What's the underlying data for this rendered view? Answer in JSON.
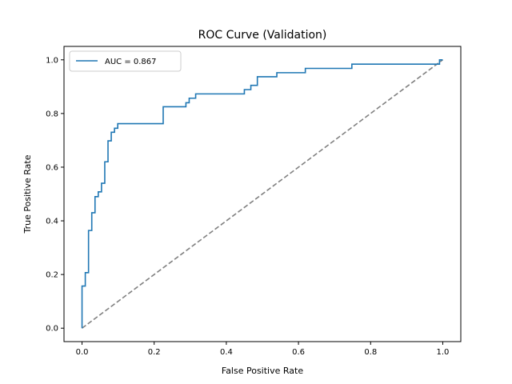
{
  "chart_data": {
    "type": "line",
    "title": "ROC Curve (Validation)",
    "xlabel": "False Positive Rate",
    "ylabel": "True Positive Rate",
    "xlim": [
      -0.05,
      1.05
    ],
    "ylim": [
      -0.05,
      1.05
    ],
    "xticks": [
      0.0,
      0.2,
      0.4,
      0.6,
      0.8,
      1.0
    ],
    "yticks": [
      0.0,
      0.2,
      0.4,
      0.6,
      0.8,
      1.0
    ],
    "xtick_labels": [
      "0.0",
      "0.2",
      "0.4",
      "0.6",
      "0.8",
      "1.0"
    ],
    "ytick_labels": [
      "0.0",
      "0.2",
      "0.4",
      "0.6",
      "0.8",
      "1.0"
    ],
    "grid": false,
    "legend_position": "top-left",
    "series": [
      {
        "name": "AUC = 0.867",
        "color": "#1f77b4",
        "style": "solid",
        "x": [
          0.0,
          0.0,
          0.0,
          0.009,
          0.009,
          0.018,
          0.018,
          0.027,
          0.027,
          0.036,
          0.036,
          0.045,
          0.045,
          0.054,
          0.054,
          0.063,
          0.063,
          0.072,
          0.072,
          0.081,
          0.081,
          0.09,
          0.09,
          0.099,
          0.099,
          0.108,
          0.108,
          0.225,
          0.225,
          0.288,
          0.288,
          0.297,
          0.297,
          0.315,
          0.315,
          0.45,
          0.45,
          0.468,
          0.468,
          0.486,
          0.486,
          0.54,
          0.54,
          0.619,
          0.619,
          0.748,
          0.748,
          0.991,
          0.991,
          1.0
        ],
        "y": [
          0.0,
          0.0,
          0.157,
          0.157,
          0.207,
          0.207,
          0.364,
          0.364,
          0.43,
          0.43,
          0.49,
          0.49,
          0.508,
          0.508,
          0.54,
          0.54,
          0.62,
          0.62,
          0.698,
          0.698,
          0.73,
          0.73,
          0.745,
          0.745,
          0.762,
          0.762,
          0.762,
          0.762,
          0.825,
          0.825,
          0.84,
          0.84,
          0.857,
          0.857,
          0.873,
          0.873,
          0.889,
          0.889,
          0.905,
          0.905,
          0.937,
          0.937,
          0.952,
          0.952,
          0.968,
          0.968,
          0.984,
          0.984,
          1.0,
          1.0
        ]
      },
      {
        "name": "",
        "color": "#808080",
        "style": "dashed",
        "x": [
          0.0,
          1.0
        ],
        "y": [
          0.0,
          1.0
        ]
      }
    ]
  }
}
